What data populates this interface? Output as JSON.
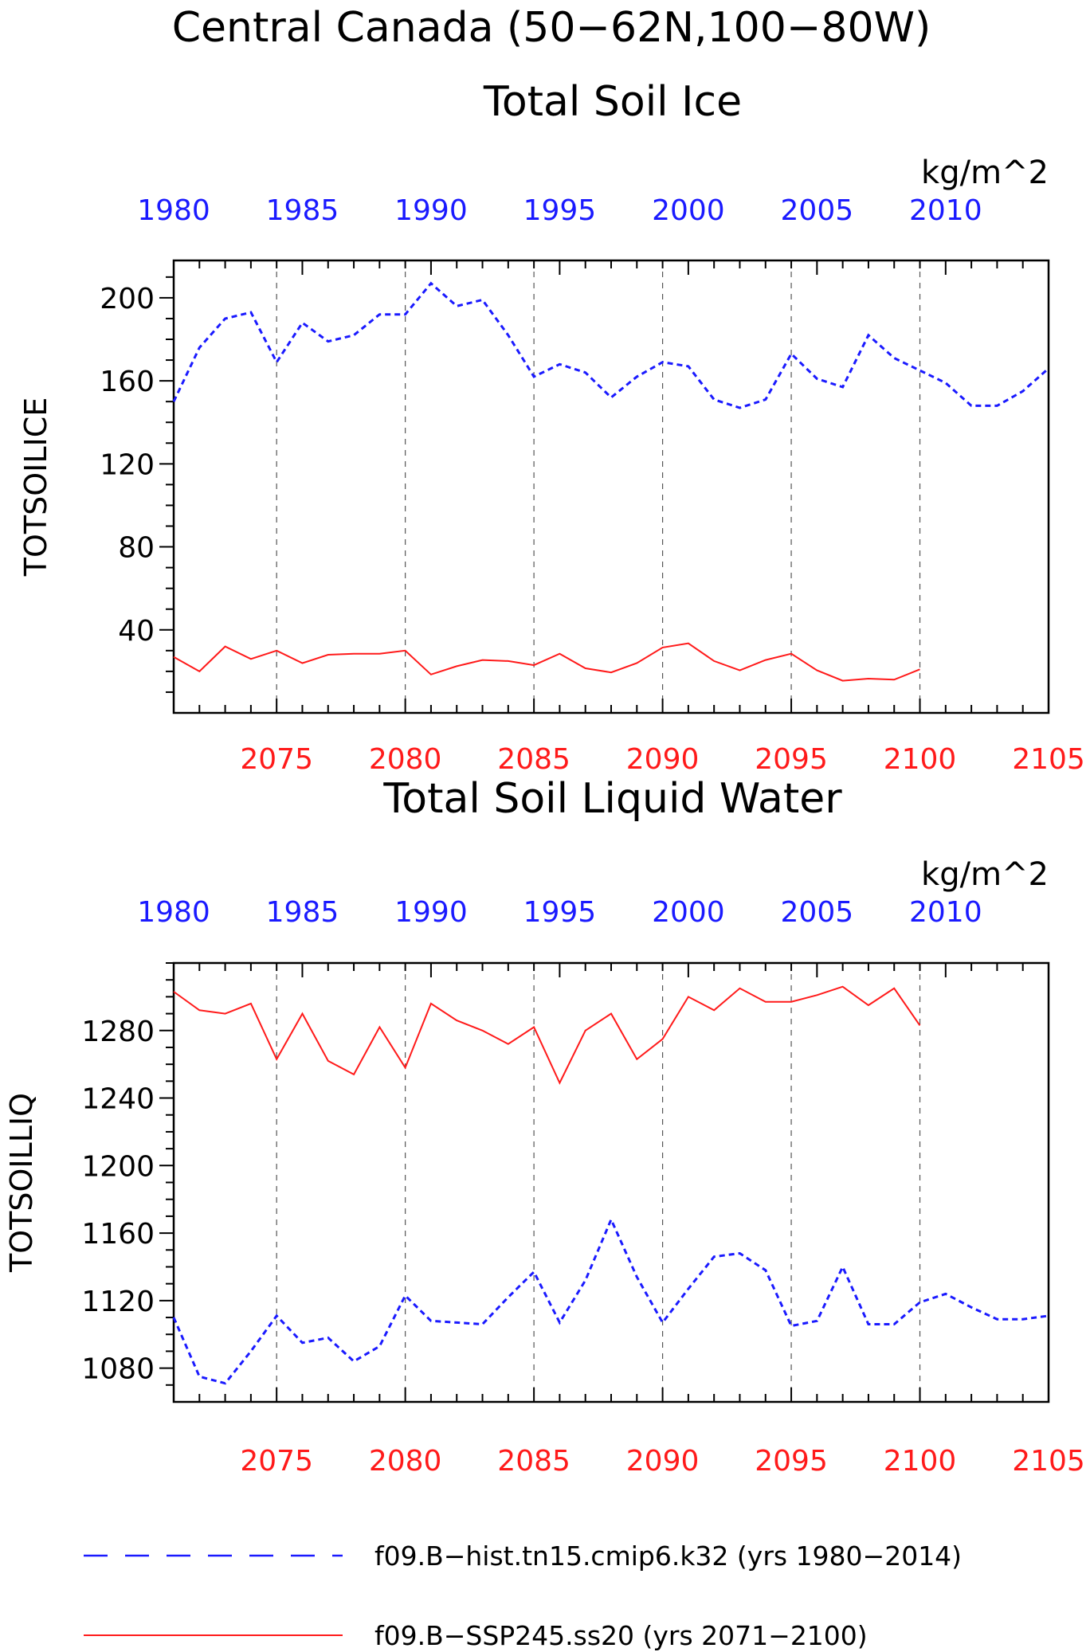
{
  "title_lines": [
    "Central Canada (50−62N,100−80W)",
    "Total Soil Ice"
  ],
  "colors": {
    "hist": "#1a1aff",
    "ssp": "#ff1a1a",
    "axis": "#000000"
  },
  "chart_data": [
    {
      "type": "line",
      "title": "",
      "ylabel": "TOTSOILICE",
      "units": "kg/m^2",
      "ylim": [
        0,
        218
      ],
      "yticks": [
        40,
        80,
        120,
        160,
        200
      ],
      "bottom_axis": {
        "labels": [
          "2075",
          "2080",
          "2085",
          "2090",
          "2095",
          "2100",
          "2105"
        ],
        "range": [
          2071,
          2105
        ]
      },
      "top_axis": {
        "labels": [
          "1980",
          "1985",
          "1990",
          "1995",
          "2000",
          "2005",
          "2010"
        ],
        "range": [
          1980,
          2014
        ]
      },
      "grid": "dashed vertical lines at 2075, 2080, 2085, 2090, 2095, 2100",
      "series": [
        {
          "name": "f09.B−hist.tn15.cmip6.k32 (yrs 1980−2014)",
          "axis": "top",
          "style": "dashed",
          "x": [
            1980,
            1981,
            1982,
            1983,
            1984,
            1985,
            1986,
            1987,
            1988,
            1989,
            1990,
            1991,
            1992,
            1993,
            1994,
            1995,
            1996,
            1997,
            1998,
            1999,
            2000,
            2001,
            2002,
            2003,
            2004,
            2005,
            2006,
            2007,
            2008,
            2009,
            2010,
            2011,
            2012,
            2013,
            2014
          ],
          "values": [
            150,
            176,
            190,
            193,
            169,
            188,
            179,
            182,
            192,
            192,
            207,
            196,
            199,
            182,
            162,
            168,
            164,
            152,
            162,
            169,
            167,
            151,
            147,
            151,
            173,
            161,
            157,
            182,
            171,
            165,
            159,
            148,
            148,
            155,
            166
          ]
        },
        {
          "name": "f09.B−SSP245.ss20 (yrs 2071−2100)",
          "axis": "bottom",
          "style": "solid",
          "x": [
            2071,
            2072,
            2073,
            2074,
            2075,
            2076,
            2077,
            2078,
            2079,
            2080,
            2081,
            2082,
            2083,
            2084,
            2085,
            2086,
            2087,
            2088,
            2089,
            2090,
            2091,
            2092,
            2093,
            2094,
            2095,
            2096,
            2097,
            2098,
            2099,
            2100
          ],
          "values": [
            27,
            20,
            32,
            26,
            30,
            24,
            28,
            28.5,
            28.5,
            30,
            18.5,
            22.5,
            25.5,
            25,
            23,
            28.5,
            21.5,
            19.5,
            24,
            31.5,
            33.5,
            25,
            20.5,
            25.5,
            28.5,
            20.5,
            15.5,
            16.5,
            16,
            21
          ]
        }
      ]
    },
    {
      "type": "line",
      "title": "Total Soil Liquid Water",
      "ylabel": "TOTSOILLIQ",
      "units": "kg/m^2",
      "ylim": [
        1060,
        1320
      ],
      "yticks": [
        1080,
        1120,
        1160,
        1200,
        1240,
        1280
      ],
      "bottom_axis": {
        "labels": [
          "2075",
          "2080",
          "2085",
          "2090",
          "2095",
          "2100",
          "2105"
        ],
        "range": [
          2071,
          2105
        ]
      },
      "top_axis": {
        "labels": [
          "1980",
          "1985",
          "1990",
          "1995",
          "2000",
          "2005",
          "2010"
        ],
        "range": [
          1980,
          2014
        ]
      },
      "grid": "dashed vertical lines at 2075, 2080, 2085, 2090, 2095, 2100",
      "series": [
        {
          "name": "f09.B−hist.tn15.cmip6.k32 (yrs 1980−2014)",
          "axis": "top",
          "style": "dashed",
          "x": [
            1980,
            1981,
            1982,
            1983,
            1984,
            1985,
            1986,
            1987,
            1988,
            1989,
            1990,
            1991,
            1992,
            1993,
            1994,
            1995,
            1996,
            1997,
            1998,
            1999,
            2000,
            2001,
            2002,
            2003,
            2004,
            2005,
            2006,
            2007,
            2008,
            2009,
            2010,
            2011,
            2012,
            2013,
            2014
          ],
          "values": [
            1110,
            1075,
            1071,
            1090,
            1111,
            1095,
            1098,
            1084,
            1093,
            1123,
            1108,
            1107,
            1106,
            1122,
            1137,
            1107,
            1132,
            1168,
            1134,
            1107,
            1127,
            1146,
            1148,
            1138,
            1105,
            1108,
            1140,
            1106,
            1106,
            1119,
            1124,
            1116,
            1109,
            1109,
            1111
          ]
        },
        {
          "name": "f09.B−SSP245.ss20 (yrs 2071−2100)",
          "axis": "bottom",
          "style": "solid",
          "x": [
            2071,
            2072,
            2073,
            2074,
            2075,
            2076,
            2077,
            2078,
            2079,
            2080,
            2081,
            2082,
            2083,
            2084,
            2085,
            2086,
            2087,
            2088,
            2089,
            2090,
            2091,
            2092,
            2093,
            2094,
            2095,
            2096,
            2097,
            2098,
            2099,
            2100
          ],
          "values": [
            1303,
            1292,
            1290,
            1296,
            1263,
            1290,
            1262,
            1254,
            1282,
            1258,
            1296,
            1286,
            1280,
            1272,
            1282,
            1249,
            1280,
            1290,
            1263,
            1275,
            1300,
            1292,
            1305,
            1297,
            1297,
            1301,
            1306,
            1295,
            1305,
            1283
          ]
        }
      ]
    }
  ],
  "legend": [
    {
      "label": "f09.B−hist.tn15.cmip6.k32 (yrs 1980−2014)",
      "style": "dashed",
      "color_key": "hist"
    },
    {
      "label": "f09.B−SSP245.ss20 (yrs 2071−2100)",
      "style": "solid",
      "color_key": "ssp"
    }
  ]
}
